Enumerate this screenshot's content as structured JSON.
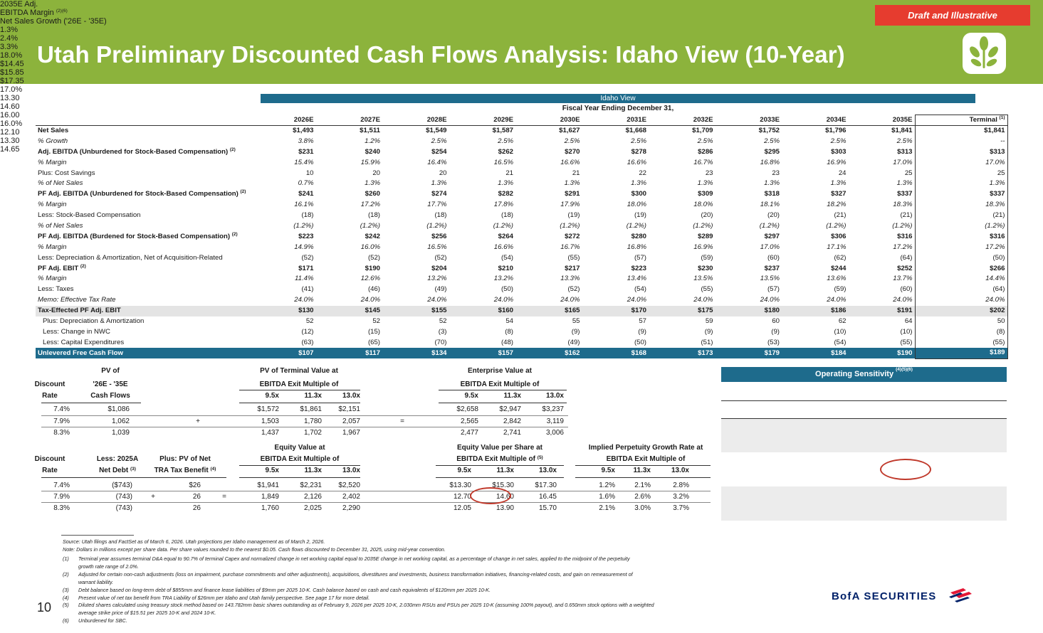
{
  "header": {
    "draft_label": "Draft and Illustrative",
    "title": "Utah Preliminary Discounted Cash Flows Analysis: Idaho View (10-Year)"
  },
  "dcf": {
    "banner": "Idaho View",
    "fy_label": "Fiscal Year Ending December 31,",
    "columns": [
      "2026E",
      "2027E",
      "2028E",
      "2029E",
      "2030E",
      "2031E",
      "2032E",
      "2033E",
      "2034E",
      "2035E"
    ],
    "terminal_label": "Terminal",
    "terminal_sup": "(1)",
    "rows": [
      {
        "label": "Net Sales",
        "sup": "",
        "style": "bold",
        "values": [
          "$1,493",
          "$1,511",
          "$1,549",
          "$1,587",
          "$1,627",
          "$1,668",
          "$1,709",
          "$1,752",
          "$1,796",
          "$1,841",
          "$1,841"
        ]
      },
      {
        "label": "% Growth",
        "sup": "",
        "style": "ital",
        "values": [
          "3.8%",
          "1.2%",
          "2.5%",
          "2.5%",
          "2.5%",
          "2.5%",
          "2.5%",
          "2.5%",
          "2.5%",
          "2.5%",
          "--"
        ]
      },
      {
        "label": "Adj. EBITDA (Unburdened for Stock-Based Compensation)",
        "sup": "(2)",
        "style": "bold",
        "values": [
          "$231",
          "$240",
          "$254",
          "$262",
          "$270",
          "$278",
          "$286",
          "$295",
          "$303",
          "$313",
          "$313"
        ]
      },
      {
        "label": "% Margin",
        "sup": "",
        "style": "ital",
        "values": [
          "15.4%",
          "15.9%",
          "16.4%",
          "16.5%",
          "16.6%",
          "16.6%",
          "16.7%",
          "16.8%",
          "16.9%",
          "17.0%",
          "17.0%"
        ]
      },
      {
        "label": "Plus: Cost Savings",
        "sup": "",
        "style": "",
        "values": [
          "10",
          "20",
          "20",
          "21",
          "21",
          "22",
          "23",
          "23",
          "24",
          "25",
          "25"
        ]
      },
      {
        "label": "% of Net Sales",
        "sup": "",
        "style": "ital",
        "values": [
          "0.7%",
          "1.3%",
          "1.3%",
          "1.3%",
          "1.3%",
          "1.3%",
          "1.3%",
          "1.3%",
          "1.3%",
          "1.3%",
          "1.3%"
        ]
      },
      {
        "label": "PF Adj. EBITDA (Unburdened for Stock-Based Compensation)",
        "sup": "(2)",
        "style": "bold",
        "values": [
          "$241",
          "$260",
          "$274",
          "$282",
          "$291",
          "$300",
          "$309",
          "$318",
          "$327",
          "$337",
          "$337"
        ]
      },
      {
        "label": "% Margin",
        "sup": "",
        "style": "ital",
        "values": [
          "16.1%",
          "17.2%",
          "17.7%",
          "17.8%",
          "17.9%",
          "18.0%",
          "18.0%",
          "18.1%",
          "18.2%",
          "18.3%",
          "18.3%"
        ]
      },
      {
        "label": "Less: Stock-Based Compensation",
        "sup": "",
        "style": "",
        "values": [
          "(18)",
          "(18)",
          "(18)",
          "(18)",
          "(19)",
          "(19)",
          "(20)",
          "(20)",
          "(21)",
          "(21)",
          "(21)"
        ]
      },
      {
        "label": "% of Net Sales",
        "sup": "",
        "style": "ital",
        "values": [
          "(1.2%)",
          "(1.2%)",
          "(1.2%)",
          "(1.2%)",
          "(1.2%)",
          "(1.2%)",
          "(1.2%)",
          "(1.2%)",
          "(1.2%)",
          "(1.2%)",
          "(1.2%)"
        ]
      },
      {
        "label": "PF Adj. EBITDA (Burdened for Stock-Based Compensation)",
        "sup": "(2)",
        "style": "bold",
        "values": [
          "$223",
          "$242",
          "$256",
          "$264",
          "$272",
          "$280",
          "$289",
          "$297",
          "$306",
          "$316",
          "$316"
        ]
      },
      {
        "label": "% Margin",
        "sup": "",
        "style": "ital",
        "values": [
          "14.9%",
          "16.0%",
          "16.5%",
          "16.6%",
          "16.7%",
          "16.8%",
          "16.9%",
          "17.0%",
          "17.1%",
          "17.2%",
          "17.2%"
        ]
      },
      {
        "label": "Less: Depreciation & Amortization, Net of Acquisition-Related",
        "sup": "",
        "style": "",
        "values": [
          "(52)",
          "(52)",
          "(52)",
          "(54)",
          "(55)",
          "(57)",
          "(59)",
          "(60)",
          "(62)",
          "(64)",
          "(50)"
        ]
      },
      {
        "label": "PF Adj. EBIT",
        "sup": "(2)",
        "style": "bold",
        "values": [
          "$171",
          "$190",
          "$204",
          "$210",
          "$217",
          "$223",
          "$230",
          "$237",
          "$244",
          "$252",
          "$266"
        ]
      },
      {
        "label": "% Margin",
        "sup": "",
        "style": "ital",
        "values": [
          "11.4%",
          "12.6%",
          "13.2%",
          "13.2%",
          "13.3%",
          "13.4%",
          "13.5%",
          "13.5%",
          "13.6%",
          "13.7%",
          "14.4%"
        ]
      },
      {
        "label": "Less: Taxes",
        "sup": "",
        "style": "",
        "values": [
          "(41)",
          "(46)",
          "(49)",
          "(50)",
          "(52)",
          "(54)",
          "(55)",
          "(57)",
          "(59)",
          "(60)",
          "(64)"
        ]
      },
      {
        "label": "Memo: Effective Tax Rate",
        "sup": "",
        "style": "ital",
        "values": [
          "24.0%",
          "24.0%",
          "24.0%",
          "24.0%",
          "24.0%",
          "24.0%",
          "24.0%",
          "24.0%",
          "24.0%",
          "24.0%",
          "24.0%"
        ]
      },
      {
        "label": "Tax-Effected PF Adj. EBIT",
        "sup": "",
        "style": "tax",
        "values": [
          "$130",
          "$145",
          "$155",
          "$160",
          "$165",
          "$170",
          "$175",
          "$180",
          "$186",
          "$191",
          "$202"
        ]
      },
      {
        "label": "Plus: Depreciation & Amortization",
        "sup": "",
        "style": "ind",
        "values": [
          "52",
          "52",
          "52",
          "54",
          "55",
          "57",
          "59",
          "60",
          "62",
          "64",
          "50"
        ]
      },
      {
        "label": "Less: Change in NWC",
        "sup": "",
        "style": "ind",
        "values": [
          "(12)",
          "(15)",
          "(3)",
          "(8)",
          "(9)",
          "(9)",
          "(9)",
          "(9)",
          "(10)",
          "(10)",
          "(8)"
        ]
      },
      {
        "label": "Less: Capital Expenditures",
        "sup": "",
        "style": "ind",
        "values": [
          "(63)",
          "(65)",
          "(70)",
          "(48)",
          "(49)",
          "(50)",
          "(51)",
          "(53)",
          "(54)",
          "(55)",
          "(55)"
        ]
      },
      {
        "label": "Unlevered Free Cash Flow",
        "sup": "",
        "style": "ufcf",
        "values": [
          "$107",
          "$117",
          "$134",
          "$157",
          "$162",
          "$168",
          "$173",
          "$179",
          "$184",
          "$190",
          "$189"
        ]
      }
    ]
  },
  "valuation_top": {
    "h_discount": "Discount",
    "h_rate": "Rate",
    "h_pv_of": "PV of",
    "h_pv_years": "'26E - '35E",
    "h_cash_flows": "Cash Flows",
    "h_pv_tv": "PV of Terminal Value at",
    "h_ebitda_exit": "EBITDA Exit Multiple of",
    "h_ev": "Enterprise Value at",
    "h_ev_sub": "EBITDA Exit Multiple of",
    "multiples": [
      "9.5x",
      "11.3x",
      "13.0x"
    ],
    "rows": [
      {
        "rate": "7.4%",
        "pv": "$1,086",
        "op1": "",
        "tv": [
          "$1,572",
          "$1,861",
          "$2,151"
        ],
        "op2": "",
        "ev": [
          "$2,658",
          "$2,947",
          "$3,237"
        ]
      },
      {
        "rate": "7.9%",
        "pv": "1,062",
        "op1": "+",
        "tv": [
          "1,503",
          "1,780",
          "2,057"
        ],
        "op2": "=",
        "ev": [
          "2,565",
          "2,842",
          "3,119"
        ]
      },
      {
        "rate": "8.3%",
        "pv": "1,039",
        "op1": "",
        "tv": [
          "1,437",
          "1,702",
          "1,967"
        ],
        "op2": "",
        "ev": [
          "2,477",
          "2,741",
          "3,006"
        ]
      }
    ]
  },
  "valuation_bottom": {
    "h_discount": "Discount",
    "h_rate": "Rate",
    "h_net_debt": "Less: 2025A",
    "h_net_debt2": "Net Debt",
    "net_debt_sup": "(3)",
    "h_tra": "Plus: PV of Net",
    "h_tra2": "TRA Tax Benefit",
    "tra_sup": "(4)",
    "h_equity": "Equity Value at",
    "h_equity_sub": "EBITDA Exit Multiple of",
    "h_eps": "Equity Value per Share at",
    "h_eps_sub": "EBITDA Exit Multiple of",
    "eps_sup": "(5)",
    "h_pgr": "Implied Perpetuity Growth Rate at",
    "h_pgr_sub": "EBITDA Exit Multiple of",
    "multiples": [
      "9.5x",
      "11.3x",
      "13.0x"
    ],
    "rows": [
      {
        "rate": "7.4%",
        "debt": "($743)",
        "op1": "",
        "tra": "$26",
        "op2": "",
        "eq": [
          "$1,941",
          "$2,231",
          "$2,520"
        ],
        "eps": [
          "$13.30",
          "$15.30",
          "$17.30"
        ],
        "pgr": [
          "1.2%",
          "2.1%",
          "2.8%"
        ]
      },
      {
        "rate": "7.9%",
        "debt": "(743)",
        "op1": "+",
        "tra": "26",
        "op2": "=",
        "eq": [
          "1,849",
          "2,126",
          "2,402"
        ],
        "eps": [
          "12.70",
          "14.60",
          "16.45"
        ],
        "pgr": [
          "1.6%",
          "2.6%",
          "3.2%"
        ]
      },
      {
        "rate": "8.3%",
        "debt": "(743)",
        "op1": "",
        "tra": "26",
        "op2": "",
        "eq": [
          "1,760",
          "2,025",
          "2,290"
        ],
        "eps": [
          "12.05",
          "13.90",
          "15.70"
        ],
        "pgr": [
          "2.1%",
          "3.0%",
          "3.7%"
        ]
      }
    ]
  },
  "sensitivity": {
    "title": "Operating Sensitivity",
    "title_sup": "(4)(5)(6)",
    "row_head1": "2035E Adj.",
    "row_head2": "EBITDA Margin",
    "row_head_sup": "(2)(6)",
    "col_head": "Net Sales Growth ('26E - '35E)",
    "cols": [
      "1.3%",
      "2.4%",
      "3.3%"
    ],
    "rows": [
      {
        "margin": "18.0%",
        "values": [
          "$14.45",
          "$15.85",
          "$17.35"
        ]
      },
      {
        "margin": "17.0%",
        "values": [
          "13.30",
          "14.60",
          "16.00"
        ]
      },
      {
        "margin": "16.0%",
        "values": [
          "12.10",
          "13.30",
          "14.65"
        ]
      }
    ]
  },
  "footnotes": {
    "source": "Source: Utah filings and FactSet as of March 6, 2026. Utah projections per Idaho management as of March 2, 2026.",
    "note": "Note: Dollars in millions except per share data. Per share values rounded to the nearest $0.05. Cash flows discounted to December 31, 2025, using mid-year convention.",
    "items": [
      {
        "tag": "(1)",
        "lines": [
          "Terminal year assumes terminal D&A equal to 90.7% of terminal Capex and normalized change in net working capital equal to 2035E change in net working capital, as a percentage of change in net sales, applied to the midpoint of the perpetuity",
          "growth rate range of 2.0%."
        ]
      },
      {
        "tag": "(2)",
        "lines": [
          "Adjusted for certain non-cash adjustments (loss on impairment, purchase commitments and other adjustments), acquisitions, divestitures and investments, business transformation initiatives, financing-related costs, and gain on remeasurement of",
          "warrant liability."
        ]
      },
      {
        "tag": "(3)",
        "lines": [
          "Debt balance based on long-term debt of $855mm and finance lease liabilities of $9mm per 2025 10-K. Cash balance based on cash and cash equivalents of $120mm per 2025 10-K."
        ]
      },
      {
        "tag": "(4)",
        "lines": [
          "Present value of net tax benefit from TRA Liability of $26mm per Idaho and Utah family perspective. See page 17 for more detail."
        ]
      },
      {
        "tag": "(5)",
        "lines": [
          "Diluted shares calculated using treasury stock method based on 143.782mm basic shares outstanding as of February 9, 2026 per 2025 10-K, 2.030mm RSUs and PSUs per 2025 10-K (assuming 100% payout), and 0.650mm stock options with a weighted",
          "average strike price of $15.51 per 2025 10-K and 2024 10-K."
        ]
      },
      {
        "tag": "(6)",
        "lines": [
          "Unburdened for SBC."
        ]
      }
    ]
  },
  "page_number": "10",
  "brand": "BofA SECURITIES",
  "icons": {
    "logo": "plant-leaf-icon",
    "brand_flag": "bofa-flag-icon"
  },
  "colors": {
    "header_green": "#8cb33c",
    "draft_red": "#e63c2f",
    "table_blue": "#1e6b8c",
    "circle_red": "#c0392b"
  }
}
